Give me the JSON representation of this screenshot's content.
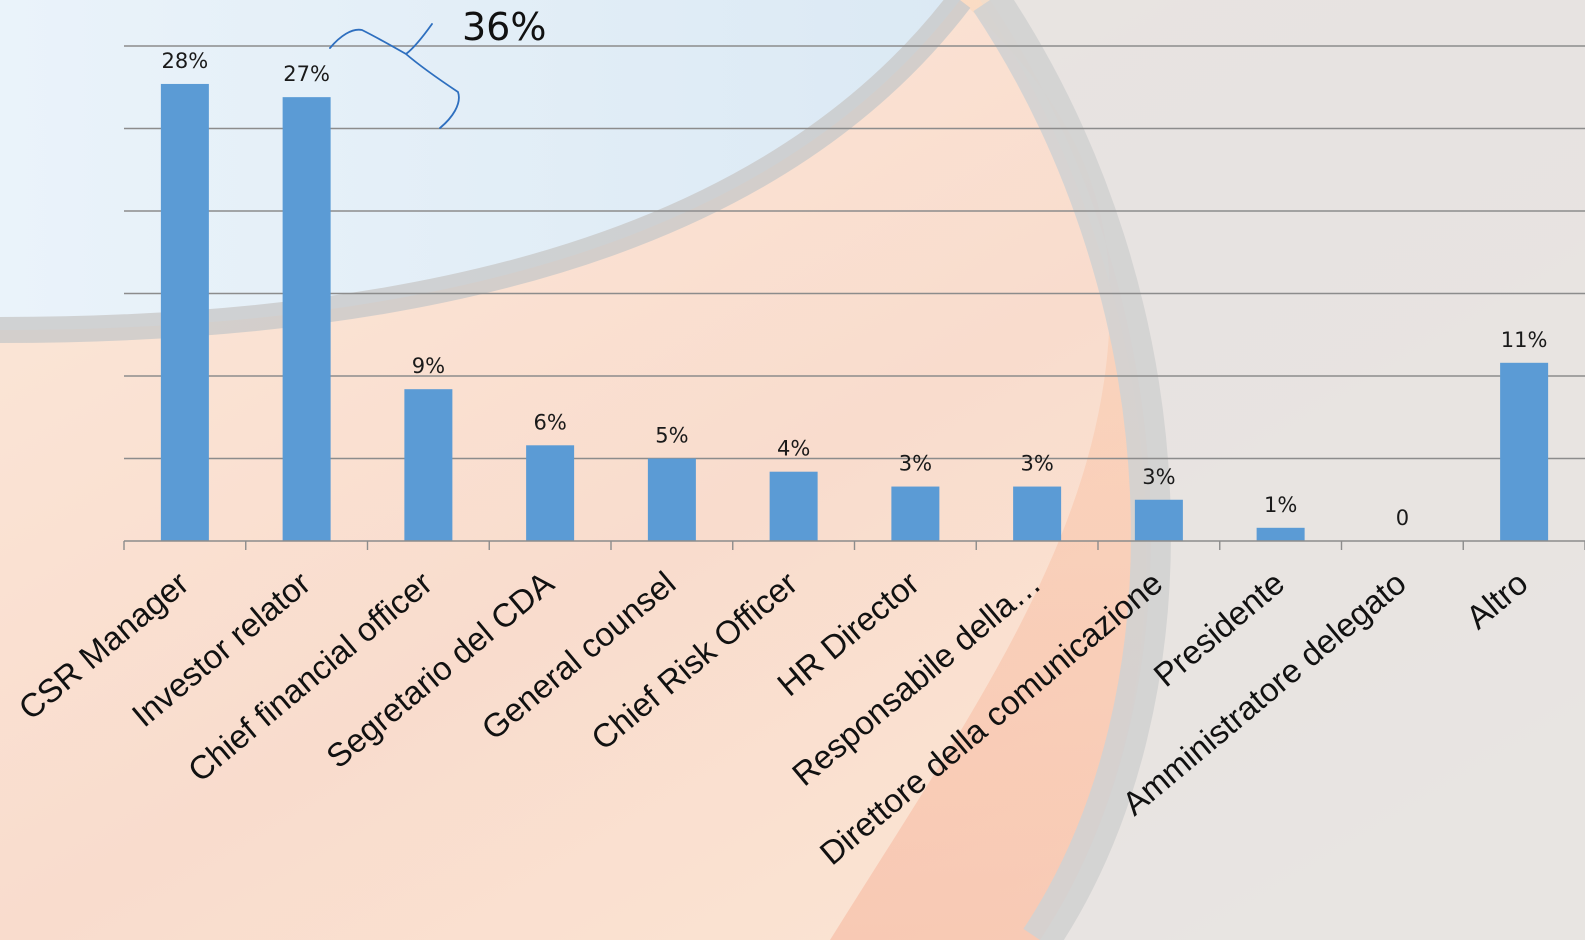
{
  "chart_data": {
    "type": "bar",
    "title": "",
    "xlabel": "",
    "ylabel": "",
    "ylim": [
      0,
      30
    ],
    "grid": true,
    "legend": "none",
    "categories": [
      "CSR Manager",
      "Investor relator",
      "Chief financial officer",
      "Segretario del CDA",
      "General counsel",
      "Chief Risk Officer",
      "HR Director",
      "Responsabile della…",
      "Direttore della comunicazione",
      "Presidente",
      "Amministratore delegato",
      "Altro"
    ],
    "values": [
      0.28,
      0.27,
      0.09,
      0.06,
      0.05,
      0.04,
      0.03,
      0.03,
      0.03,
      0.01,
      0,
      0.11
    ],
    "bar_heights_pct": [
      27.7,
      26.9,
      9.2,
      5.8,
      5.0,
      4.2,
      3.3,
      3.3,
      2.5,
      0.8,
      0,
      10.8
    ],
    "data_labels": [
      "28%",
      "27%",
      "9%",
      "6%",
      "5%",
      "4%",
      "3%",
      "3%",
      "3%",
      "1%",
      "0",
      "11%"
    ],
    "annotation": "36%",
    "bar_color": "#5b9bd5",
    "gridline_color": "#8c8c8c",
    "annotation_color": "#2e6fbf"
  }
}
